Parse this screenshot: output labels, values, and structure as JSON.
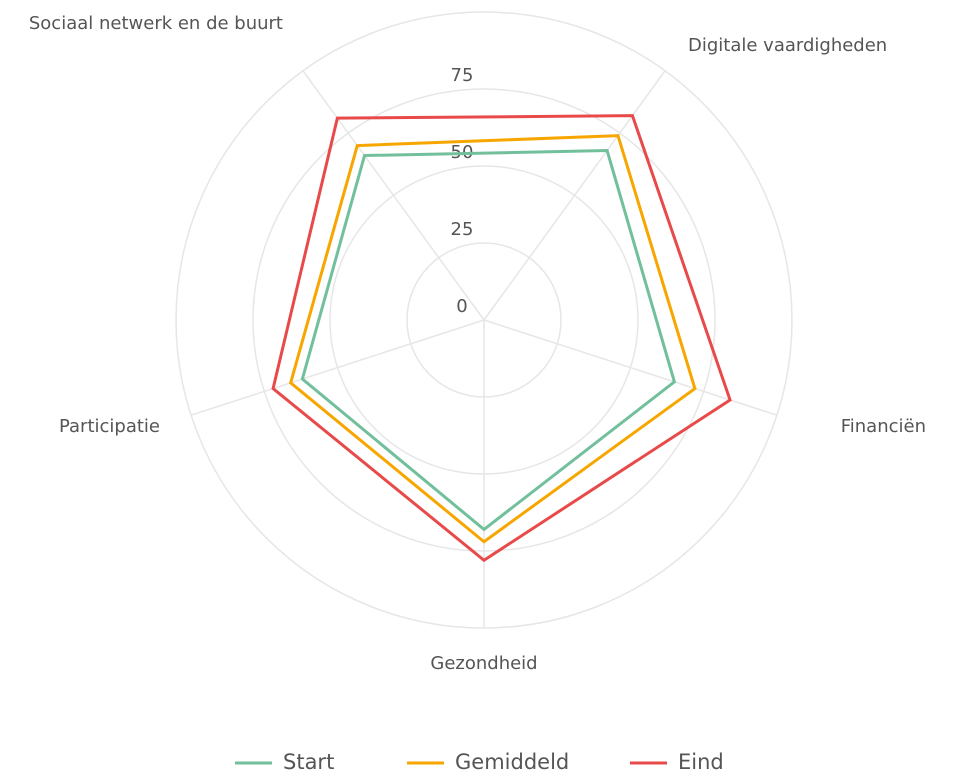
{
  "chart_data": {
    "type": "radar",
    "categories": [
      "Sociaal netwerk en de buurt",
      "Digitale vaardigheden",
      "Financiën",
      "Gezondheid",
      "Participatie"
    ],
    "series": [
      {
        "name": "Start",
        "color": "#72bf9c",
        "values": [
          66,
          68,
          65,
          68,
          62
        ]
      },
      {
        "name": "Gemiddeld",
        "color": "#f7a600",
        "values": [
          70,
          74,
          72,
          72,
          66
        ]
      },
      {
        "name": "Eind",
        "color": "#e84a4a",
        "values": [
          81,
          82,
          84,
          78,
          72
        ]
      }
    ],
    "ylim": [
      0,
      100
    ],
    "yticks": [
      0,
      25,
      50,
      75
    ],
    "grid": true,
    "legend": "bottom"
  }
}
